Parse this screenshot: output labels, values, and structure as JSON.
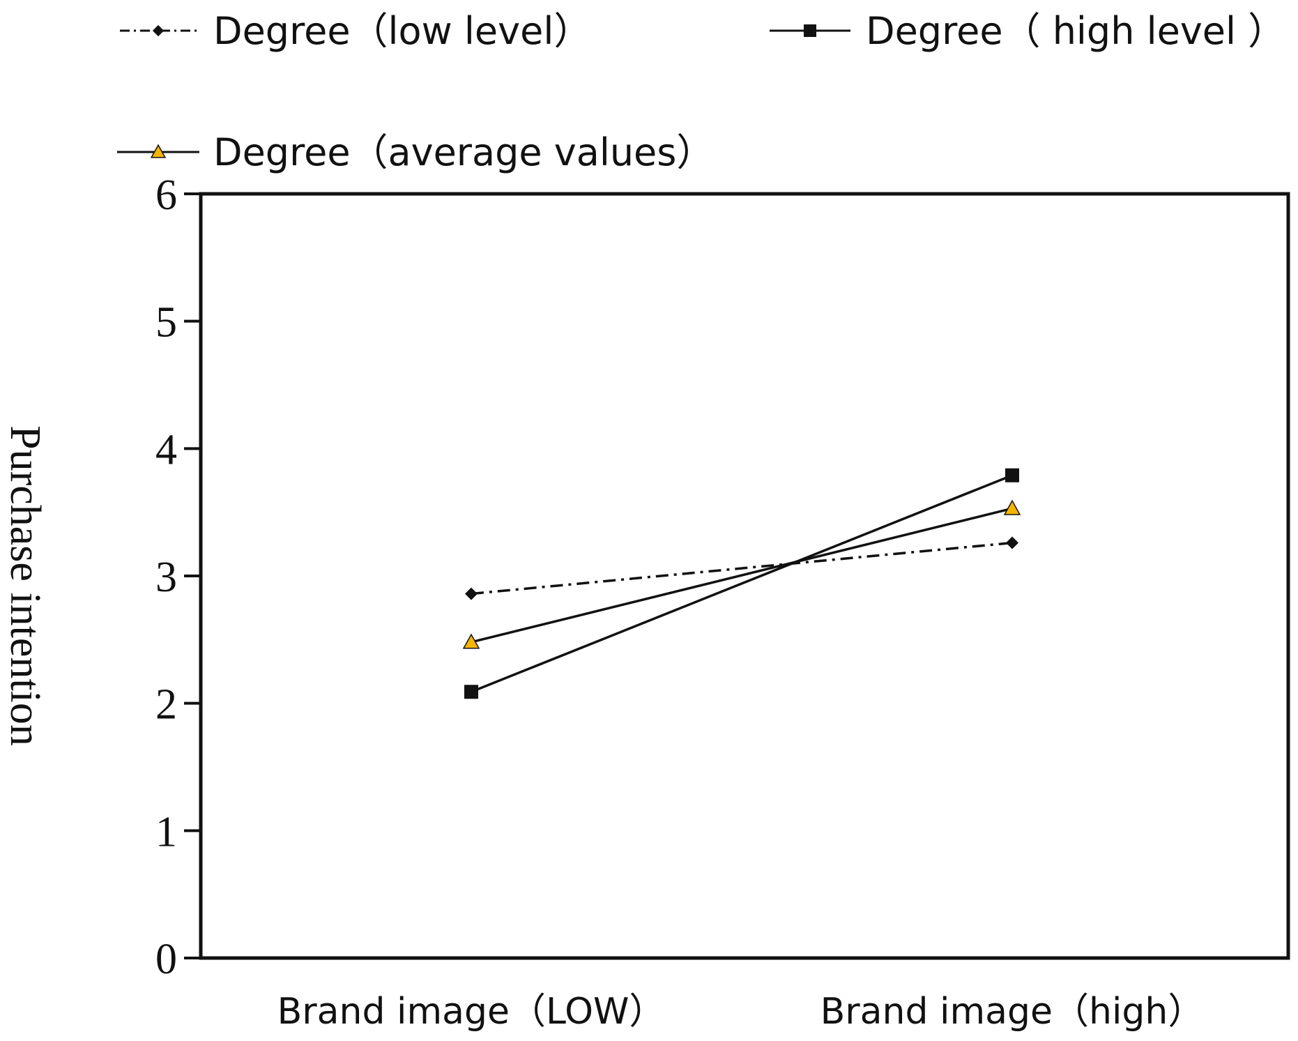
{
  "chart_data": {
    "type": "line",
    "title": "",
    "xlabel": "",
    "ylabel": "Purchase intention",
    "categories": [
      "Brand image（LOW）",
      "Brand image（high）"
    ],
    "ylim": [
      0,
      6
    ],
    "yticks": [
      "0",
      "1",
      "2",
      "3",
      "4",
      "5",
      "6"
    ],
    "grid": false,
    "legend_position": "top",
    "series": [
      {
        "name": "Degree（low level）",
        "values": [
          2.86,
          3.26
        ],
        "marker": "diamond",
        "line_style": "dash-dot",
        "color": "#111111"
      },
      {
        "name": "Degree（ high level ）",
        "values": [
          2.09,
          3.79
        ],
        "marker": "square",
        "line_style": "solid",
        "color": "#111111"
      },
      {
        "name": "Degree（average values）",
        "values": [
          2.48,
          3.53
        ],
        "marker": "triangle",
        "line_style": "solid",
        "color": "#111111",
        "marker_color": "#f5b400"
      }
    ]
  }
}
